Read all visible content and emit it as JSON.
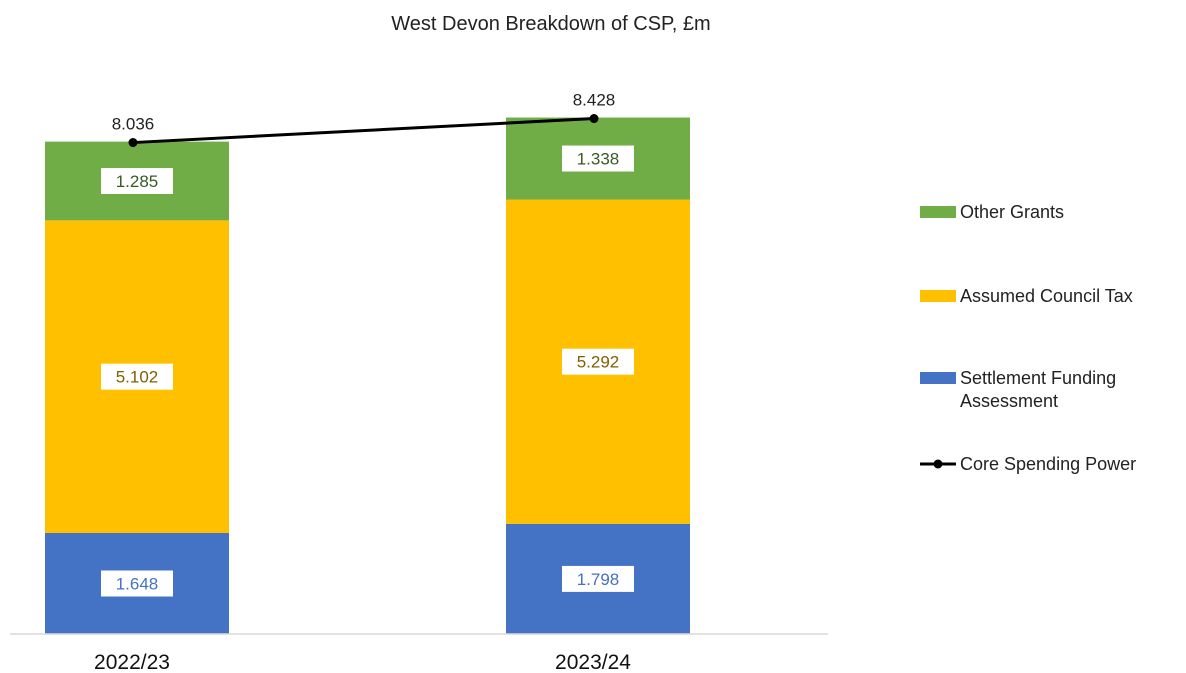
{
  "chart_data": {
    "type": "bar",
    "stacked": true,
    "title": "West Devon Breakdown of CSP, £m",
    "categories": [
      "2022/23",
      "2023/24"
    ],
    "series": [
      {
        "name": "Settlement Funding Assessment",
        "type": "bar",
        "color": "#4472c4",
        "label_color": "#4472c4",
        "values": [
          1.648,
          1.798
        ]
      },
      {
        "name": "Assumed Council Tax",
        "type": "bar",
        "color": "#ffc000",
        "label_color": "#7f6000",
        "values": [
          5.102,
          5.292
        ]
      },
      {
        "name": "Other Grants",
        "type": "bar",
        "color": "#70ad47",
        "label_color": "#3a5a25",
        "values": [
          1.285,
          1.338
        ]
      },
      {
        "name": "Core Spending Power",
        "type": "line",
        "color": "#000000",
        "values": [
          8.036,
          8.428
        ]
      }
    ],
    "total_labels": [
      "8.036",
      "8.428"
    ],
    "segment_labels": [
      [
        "1.648",
        "5.102",
        "1.285"
      ],
      [
        "1.798",
        "5.292",
        "1.338"
      ]
    ],
    "legend": {
      "position": "right",
      "items": [
        {
          "label": "Other Grants",
          "color": "#70ad47",
          "marker": "square"
        },
        {
          "label": "Assumed Council Tax",
          "color": "#ffc000",
          "marker": "square"
        },
        {
          "label_lines": [
            "Settlement Funding",
            "Assessment"
          ],
          "color": "#4472c4",
          "marker": "square"
        },
        {
          "label": "Core Spending Power",
          "color": "#000000",
          "marker": "line"
        }
      ]
    },
    "grid": false,
    "ylim": [
      0,
      8.6
    ]
  }
}
